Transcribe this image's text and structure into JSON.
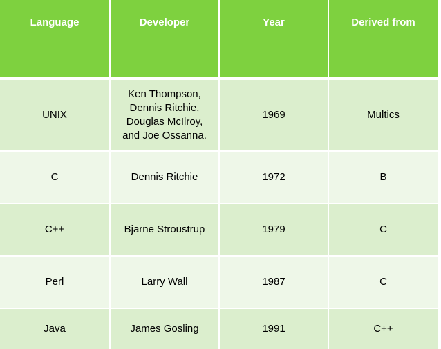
{
  "table": {
    "headers": [
      "Language",
      "Developer",
      "Year",
      "Derived from"
    ],
    "rows": [
      {
        "language": "UNIX",
        "developer": "Ken Thompson,\nDennis Ritchie,\nDouglas McIlroy,\nand Joe Ossanna.",
        "year": "1969",
        "derived_from": "Multics"
      },
      {
        "language": "C",
        "developer": "Dennis Ritchie",
        "year": "1972",
        "derived_from": "B"
      },
      {
        "language": "C++",
        "developer": "Bjarne Stroustrup",
        "year": "1979",
        "derived_from": "C"
      },
      {
        "language": "Perl",
        "developer": "Larry Wall",
        "year": "1987",
        "derived_from": "C"
      },
      {
        "language": "Java",
        "developer": "James Gosling",
        "year": "1991",
        "derived_from": "C++"
      }
    ]
  },
  "colors": {
    "header_bg": "#7ed13f",
    "row_dark": "#dbeecd",
    "row_light": "#eef7e8",
    "header_text": "#ffffff"
  }
}
